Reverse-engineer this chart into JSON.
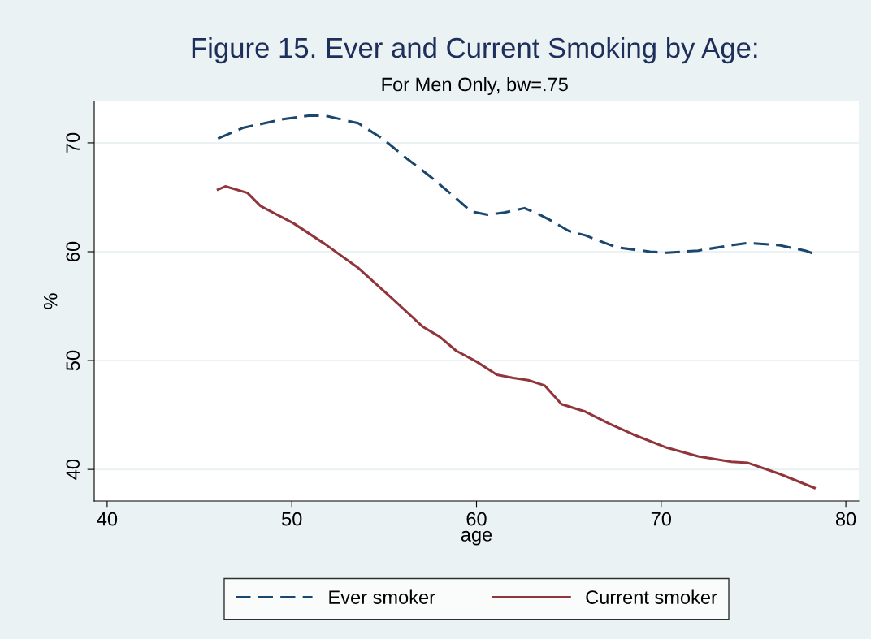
{
  "chart_data": {
    "type": "line",
    "title": "Figure 15. Ever and Current Smoking by Age:",
    "subtitle": "For Men Only, bw=.75",
    "xlabel": "age",
    "ylabel": "%",
    "xlim": [
      39.3,
      80.7
    ],
    "ylim": [
      37.1,
      73.8
    ],
    "xticks": [
      40,
      50,
      60,
      70,
      80
    ],
    "yticks": [
      40,
      50,
      60,
      70
    ],
    "grid": "y",
    "legend": "bottom",
    "series": [
      {
        "name": "Ever smoker",
        "color": "#1a476f",
        "line_style": "dashed",
        "x": [
          46.0,
          47.4,
          49.6,
          50.9,
          51.8,
          53.6,
          54.9,
          56.2,
          57.5,
          58.9,
          59.7,
          60.6,
          61.5,
          62.6,
          63.3,
          64.1,
          65.0,
          65.9,
          66.8,
          67.6,
          69.4,
          70.3,
          72.0,
          73.8,
          74.7,
          76.4,
          77.8,
          78.3
        ],
        "values": [
          70.4,
          71.4,
          72.2,
          72.5,
          72.5,
          71.8,
          70.4,
          68.6,
          66.9,
          64.9,
          63.7,
          63.4,
          63.6,
          64.0,
          63.5,
          62.8,
          61.9,
          61.5,
          60.9,
          60.4,
          60.0,
          59.9,
          60.1,
          60.6,
          60.8,
          60.6,
          60.1,
          59.8
        ]
      },
      {
        "name": "Current smoker",
        "color": "#90353b",
        "line_style": "solid",
        "x": [
          46.0,
          46.4,
          47.6,
          48.3,
          50.1,
          51.8,
          53.6,
          55.3,
          57.1,
          58.0,
          58.9,
          60.0,
          61.1,
          62.0,
          62.8,
          63.7,
          64.6,
          65.9,
          67.2,
          68.5,
          70.3,
          72.0,
          73.8,
          74.7,
          76.4,
          78.3
        ],
        "values": [
          65.7,
          66.0,
          65.4,
          64.2,
          62.6,
          60.7,
          58.5,
          55.9,
          53.1,
          52.2,
          50.9,
          49.9,
          48.7,
          48.4,
          48.2,
          47.7,
          46.0,
          45.3,
          44.2,
          43.2,
          42.0,
          41.2,
          40.7,
          40.6,
          39.6,
          38.3
        ]
      }
    ]
  }
}
